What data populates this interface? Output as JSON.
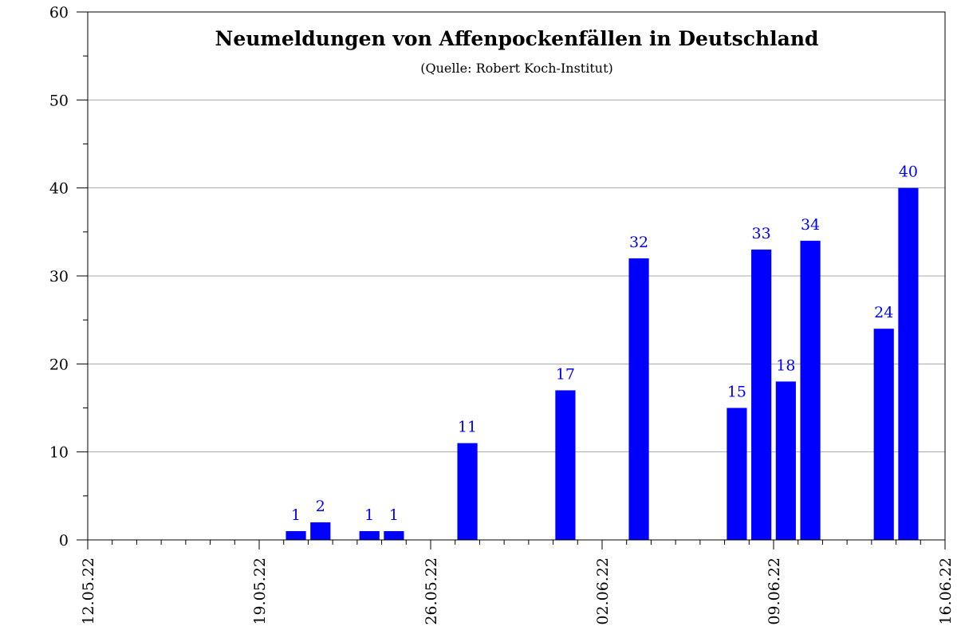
{
  "chart_data": {
    "type": "bar",
    "title": "Neumeldungen von Affenpockenfällen in Deutschland",
    "subtitle": "(Quelle: Robert Koch-Institut)",
    "xlabel": "",
    "ylabel": "",
    "ylim": [
      0,
      60
    ],
    "y_major_ticks": [
      0,
      10,
      20,
      30,
      40,
      50,
      60
    ],
    "y_minor_step": 5,
    "x_range": [
      "12.05.22",
      "16.06.22"
    ],
    "x_tick_labels": [
      "12.05.22",
      "19.05.22",
      "26.05.22",
      "02.06.22",
      "09.06.22",
      "16.06.22"
    ],
    "grid": "horizontal",
    "bar_color": "#0000ff",
    "label_color": "#0000ff",
    "points": [
      {
        "date": "20.05.22",
        "value": 1
      },
      {
        "date": "21.05.22",
        "value": 2
      },
      {
        "date": "23.05.22",
        "value": 1
      },
      {
        "date": "24.05.22",
        "value": 1
      },
      {
        "date": "27.05.22",
        "value": 11
      },
      {
        "date": "31.05.22",
        "value": 17
      },
      {
        "date": "03.06.22",
        "value": 32
      },
      {
        "date": "07.06.22",
        "value": 15
      },
      {
        "date": "08.06.22",
        "value": 33
      },
      {
        "date": "09.06.22",
        "value": 18
      },
      {
        "date": "10.06.22",
        "value": 34
      },
      {
        "date": "13.06.22",
        "value": 24
      },
      {
        "date": "14.06.22",
        "value": 40
      }
    ]
  }
}
